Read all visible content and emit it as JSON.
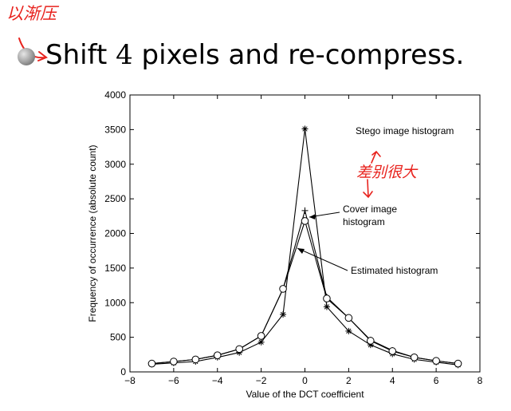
{
  "slide": {
    "handwritten_note_top": "以渐压",
    "bullet_text_1": "Shift",
    "bullet_number": "4",
    "bullet_text_2": "pixels and re-compress.",
    "handwritten_note_chart": "差别很大"
  },
  "chart_data": {
    "type": "line",
    "title": "",
    "xlabel": "Value of the DCT coefficient",
    "ylabel": "Frequency of occurrence (absolute count)",
    "xlim": [
      -8,
      8
    ],
    "ylim": [
      0,
      4000
    ],
    "xticks": [
      -8,
      -6,
      -4,
      -2,
      0,
      2,
      4,
      6,
      8
    ],
    "xtick_labels": [
      "−8",
      "−6",
      "−4",
      "−2",
      "0",
      "2",
      "4",
      "6",
      "8"
    ],
    "yticks": [
      0,
      500,
      1000,
      1500,
      2000,
      2500,
      3000,
      3500,
      4000
    ],
    "ytick_labels": [
      "0",
      "500",
      "1000",
      "1500",
      "2000",
      "2500",
      "3000",
      "3500",
      "4000"
    ],
    "grid": false,
    "x": [
      -7,
      -6,
      -5,
      -4,
      -3,
      -2,
      -1,
      0,
      1,
      2,
      3,
      4,
      5,
      6,
      7
    ],
    "series": [
      {
        "name": "Stego image histogram",
        "marker": "star",
        "values": [
          110,
          130,
          150,
          210,
          280,
          430,
          830,
          3510,
          940,
          590,
          390,
          260,
          180,
          140,
          100
        ]
      },
      {
        "name": "Cover image histogram",
        "marker": "plus",
        "values": [
          120,
          150,
          180,
          240,
          330,
          520,
          1200,
          2330,
          1080,
          780,
          460,
          310,
          210,
          160,
          120
        ]
      },
      {
        "name": "Estimated histogram",
        "marker": "circle",
        "values": [
          120,
          150,
          180,
          240,
          330,
          520,
          1200,
          2180,
          1060,
          780,
          450,
          300,
          210,
          160,
          120
        ]
      }
    ],
    "annotations": [
      {
        "text": "Stego image histogram",
        "target_series": 0
      },
      {
        "text": "Cover image",
        "text2": "histogram",
        "target_series": 1
      },
      {
        "text": "Estimated histogram",
        "target_series": 2
      }
    ]
  }
}
